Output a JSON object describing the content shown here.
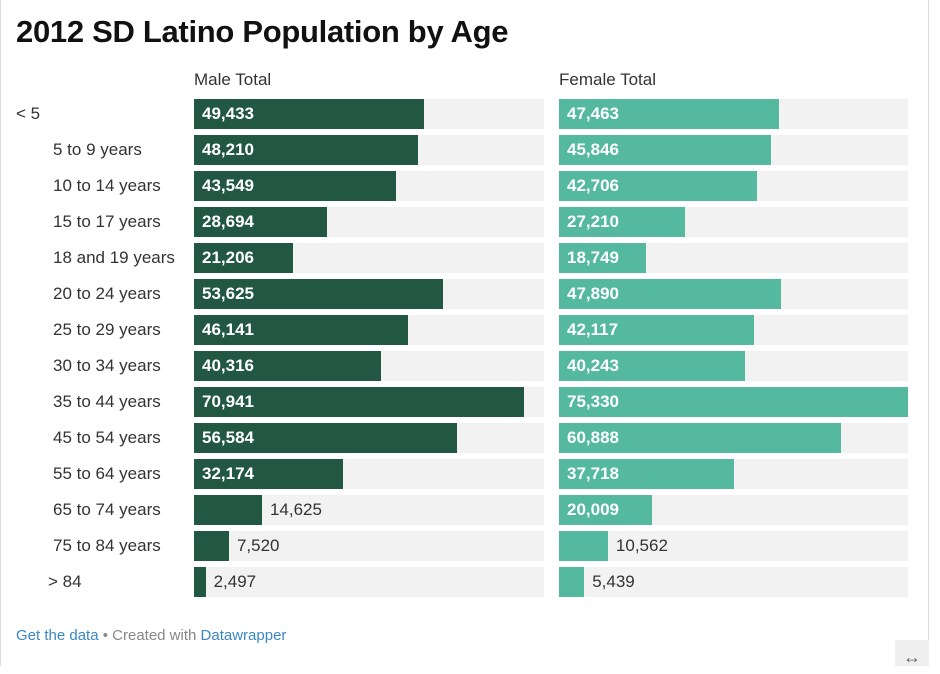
{
  "chart_data": {
    "type": "bar",
    "title": "2012 SD Latino Population by Age",
    "categories": [
      "< 5",
      "5 to 9 years",
      "10 to 14 years",
      "15 to 17 years",
      "18 and 19 years",
      "20 to 24 years",
      "25 to 29 years",
      "30 to 34 years",
      "35 to 44 years",
      "45 to 54 years",
      "55 to 64 years",
      "65 to 74 years",
      "75 to 84 years",
      "> 84"
    ],
    "series": [
      {
        "name": "Male Total",
        "color": "#225744",
        "values": [
          49433,
          48210,
          43549,
          28694,
          21206,
          53625,
          46141,
          40316,
          70941,
          56584,
          32174,
          14625,
          7520,
          2497
        ]
      },
      {
        "name": "Female Total",
        "color": "#55b9a0",
        "values": [
          47463,
          45846,
          42706,
          27210,
          18749,
          47890,
          42117,
          40243,
          75330,
          60888,
          37718,
          20009,
          10562,
          5439
        ]
      }
    ],
    "xlim": [
      0,
      75330
    ],
    "grid": false,
    "track_color": "#f2f2f2"
  },
  "footer": {
    "get_data": "Get the data",
    "separator": " • Created with ",
    "datawrapper": "Datawrapper"
  },
  "resize_icon": "↔"
}
